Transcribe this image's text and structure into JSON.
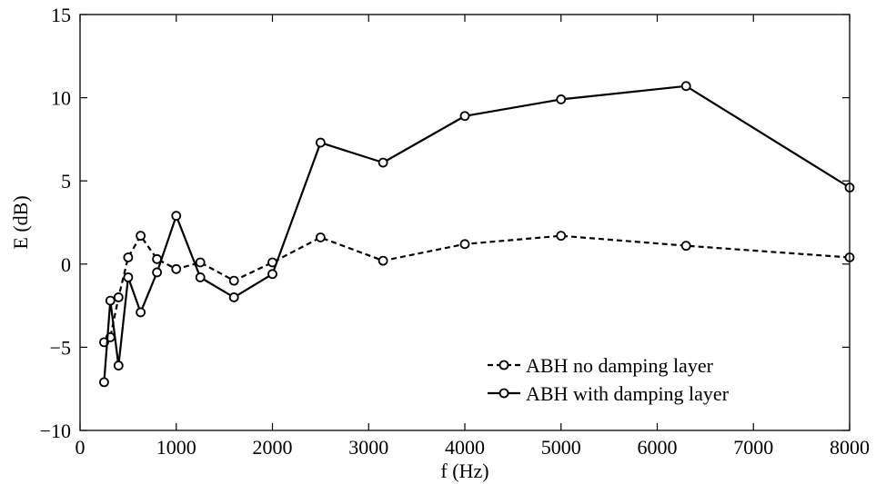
{
  "chart_data": {
    "type": "line",
    "title": "",
    "xlabel": "f (Hz)",
    "ylabel": "E (dB)",
    "xlim": [
      0,
      8000
    ],
    "ylim": [
      -10,
      15
    ],
    "xticks": [
      0,
      1000,
      2000,
      3000,
      4000,
      5000,
      6000,
      7000,
      8000
    ],
    "xtick_labels": [
      "0",
      "1000",
      "2000",
      "3000",
      "4000",
      "5000",
      "6000",
      "7000",
      "8000"
    ],
    "yticks": [
      -10,
      -5,
      0,
      5,
      10,
      15
    ],
    "ytick_labels": [
      "−10",
      "−5",
      "0",
      "5",
      "10",
      "15"
    ],
    "grid": false,
    "legend_position": "bottom-right",
    "x": [
      250,
      315,
      400,
      500,
      630,
      800,
      1000,
      1250,
      1600,
      2000,
      2500,
      3150,
      4000,
      5000,
      6300,
      8000
    ],
    "series": [
      {
        "name": "ABH no damping layer",
        "style": "dashed",
        "marker": "circle",
        "color": "#000000",
        "values": [
          -4.7,
          -4.4,
          -2.0,
          0.4,
          1.7,
          0.3,
          -0.3,
          0.1,
          -1.0,
          0.1,
          1.6,
          0.2,
          1.2,
          1.7,
          1.1,
          0.4
        ]
      },
      {
        "name": "ABH with damping layer",
        "style": "solid",
        "marker": "circle",
        "color": "#000000",
        "values": [
          -7.1,
          -2.2,
          -6.1,
          -0.8,
          -2.9,
          -0.5,
          2.9,
          -0.8,
          -2.0,
          -0.6,
          7.3,
          6.1,
          8.9,
          9.9,
          10.7,
          4.6
        ]
      }
    ]
  }
}
